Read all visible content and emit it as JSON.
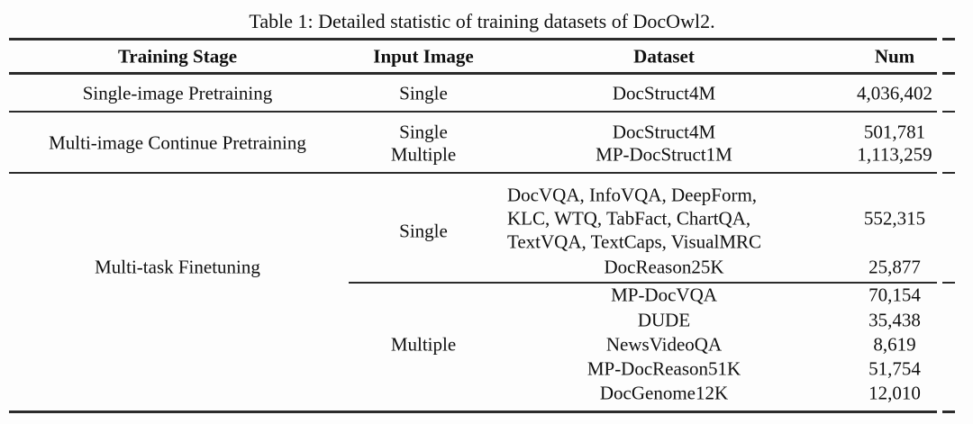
{
  "title": "Table 1: Detailed statistic of training datasets of DocOwl2.",
  "colors": {
    "text": "#101010",
    "rule": "#2b2b2b",
    "background": "#fdfdfd"
  },
  "columns": [
    "Training Stage",
    "Input Image",
    "Dataset",
    "Num"
  ],
  "table": {
    "stage1": {
      "stage": "Single-image Pretraining",
      "input": "Single",
      "dataset": "DocStruct4M",
      "num": "4,036,402"
    },
    "stage2": {
      "stage": "Multi-image Continue Pretraining",
      "rows": [
        {
          "input": "Single",
          "dataset": "DocStruct4M",
          "num": "501,781"
        },
        {
          "input": "Multiple",
          "dataset": "MP-DocStruct1M",
          "num": "1,113,259"
        }
      ]
    },
    "stage3": {
      "stage": "Multi-task Finetuning",
      "single": {
        "input": "Single",
        "dataset_lines": [
          "DocVQA, InfoVQA, DeepForm,",
          "KLC, WTQ, TabFact, ChartQA,",
          "TextVQA, TextCaps, VisualMRC"
        ],
        "num": "552,315",
        "extra": {
          "dataset": "DocReason25K",
          "num": "25,877"
        }
      },
      "multiple": {
        "input": "Multiple",
        "rows": [
          {
            "dataset": "MP-DocVQA",
            "num": "70,154"
          },
          {
            "dataset": "DUDE",
            "num": "35,438"
          },
          {
            "dataset": "NewsVideoQA",
            "num": "8,619"
          },
          {
            "dataset": "MP-DocReason51K",
            "num": "51,754"
          },
          {
            "dataset": "DocGenome12K",
            "num": "12,010"
          }
        ]
      }
    }
  }
}
